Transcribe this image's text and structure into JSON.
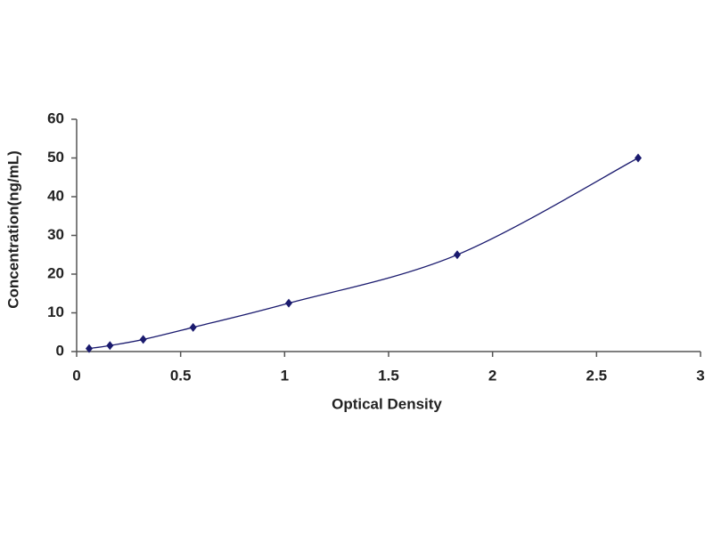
{
  "chart_data": {
    "type": "scatter",
    "x_label": "Optical Density",
    "y_label": "Concentration(ng/mL)",
    "series": [
      {
        "x": [
          0.06,
          0.16,
          0.32,
          0.56,
          1.02,
          1.83,
          2.7
        ],
        "values": [
          0.78,
          1.56,
          3.12,
          6.25,
          12.5,
          25,
          50
        ],
        "color": "#1a1a6e"
      }
    ],
    "smooth_line": true,
    "xlim": [
      0,
      3
    ],
    "xticks": [
      0,
      0.5,
      1,
      1.5,
      2,
      2.5,
      3
    ],
    "ylim": [
      0,
      60
    ],
    "yticks": [
      0,
      10,
      20,
      30,
      40,
      50,
      60
    ],
    "grid": false
  }
}
